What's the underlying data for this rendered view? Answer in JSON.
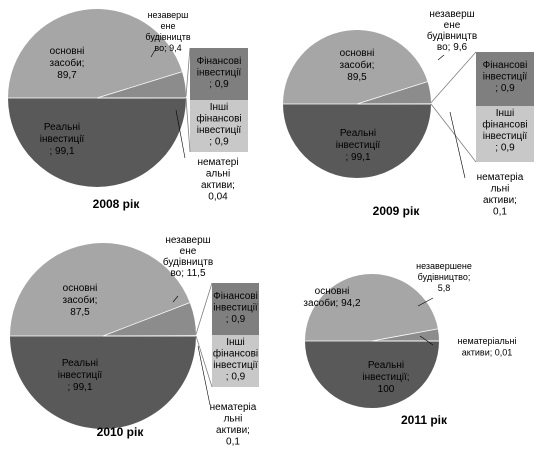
{
  "chart_data": [
    {
      "type": "pie",
      "title": "2008 рік",
      "slices": [
        {
          "label_lines": [
            "основні",
            "засоби;",
            "89,7"
          ],
          "value": 89.7,
          "color": "#a6a6a6"
        },
        {
          "label_lines": [
            "незаверш",
            "ене",
            "будівництв",
            "во; 9,4"
          ],
          "value": 9.4,
          "color": "#8c8c8c"
        },
        {
          "label_lines": [
            "нематері",
            "альні",
            "активи;",
            "0,04"
          ],
          "value": 0.04,
          "color": "#c8c8c8"
        },
        {
          "label_lines": [
            "Реальні",
            "інвестиції",
            "; 99,1"
          ],
          "value": 99.1,
          "color": "#595959"
        }
      ],
      "breakdown": [
        {
          "label_lines": [
            "Фінансові",
            "інвестиції",
            "; 0,9"
          ],
          "value": 0.9,
          "color": "#7f7f7f"
        },
        {
          "label_lines": [
            "Інші",
            "фінансові",
            "інвестиції",
            "; 0,9"
          ],
          "value": 0.9,
          "color": "#c8c8c8"
        }
      ]
    },
    {
      "type": "pie",
      "title": "2009 рік",
      "slices": [
        {
          "label_lines": [
            "основні",
            "засоби;",
            "89,5"
          ],
          "value": 89.5,
          "color": "#a6a6a6"
        },
        {
          "label_lines": [
            "незаверш",
            "ене",
            "будівництв",
            "во; 9,6"
          ],
          "value": 9.6,
          "color": "#8c8c8c"
        },
        {
          "label_lines": [
            "нематеріа",
            "льні",
            "активи;",
            "0,1"
          ],
          "value": 0.1,
          "color": "#c8c8c8"
        },
        {
          "label_lines": [
            "Реальні",
            "інвестиції",
            "; 99,1"
          ],
          "value": 99.1,
          "color": "#595959"
        }
      ],
      "breakdown": [
        {
          "label_lines": [
            "Фінансові",
            "інвестиції",
            "; 0,9"
          ],
          "value": 0.9,
          "color": "#7f7f7f"
        },
        {
          "label_lines": [
            "Інші",
            "фінансові",
            "інвестиції",
            "; 0,9"
          ],
          "value": 0.9,
          "color": "#c8c8c8"
        }
      ]
    },
    {
      "type": "pie",
      "title": "2010 рік",
      "slices": [
        {
          "label_lines": [
            "основні",
            "засоби;",
            "87,5"
          ],
          "value": 87.5,
          "color": "#a6a6a6"
        },
        {
          "label_lines": [
            "незаверш",
            "ене",
            "будівництв",
            "во; 11,5"
          ],
          "value": 11.5,
          "color": "#8c8c8c"
        },
        {
          "label_lines": [
            "нематеріа",
            "льні",
            "активи;",
            "0,1"
          ],
          "value": 0.1,
          "color": "#c8c8c8"
        },
        {
          "label_lines": [
            "Реальні",
            "інвестиції",
            "; 99,1"
          ],
          "value": 99.1,
          "color": "#595959"
        }
      ],
      "breakdown": [
        {
          "label_lines": [
            "Фінансові",
            "інвестиції",
            "; 0,9"
          ],
          "value": 0.9,
          "color": "#7f7f7f"
        },
        {
          "label_lines": [
            "Інші",
            "фінансові",
            "інвестиції",
            "; 0,9"
          ],
          "value": 0.9,
          "color": "#c8c8c8"
        }
      ]
    },
    {
      "type": "pie",
      "title": "2011 рік",
      "slices": [
        {
          "label_lines": [
            "основні",
            "засоби; 94,2"
          ],
          "value": 94.2,
          "color": "#a6a6a6"
        },
        {
          "label_lines": [
            "незавершене",
            "будівництво;",
            "5,8"
          ],
          "value": 5.8,
          "color": "#8c8c8c"
        },
        {
          "label_lines": [
            "нематеріальні",
            "активи; 0,01"
          ],
          "value": 0.01,
          "color": "#c8c8c8"
        },
        {
          "label_lines": [
            "Реальні",
            "інвестиції;",
            "100"
          ],
          "value": 100,
          "color": "#595959"
        }
      ],
      "breakdown": []
    }
  ]
}
